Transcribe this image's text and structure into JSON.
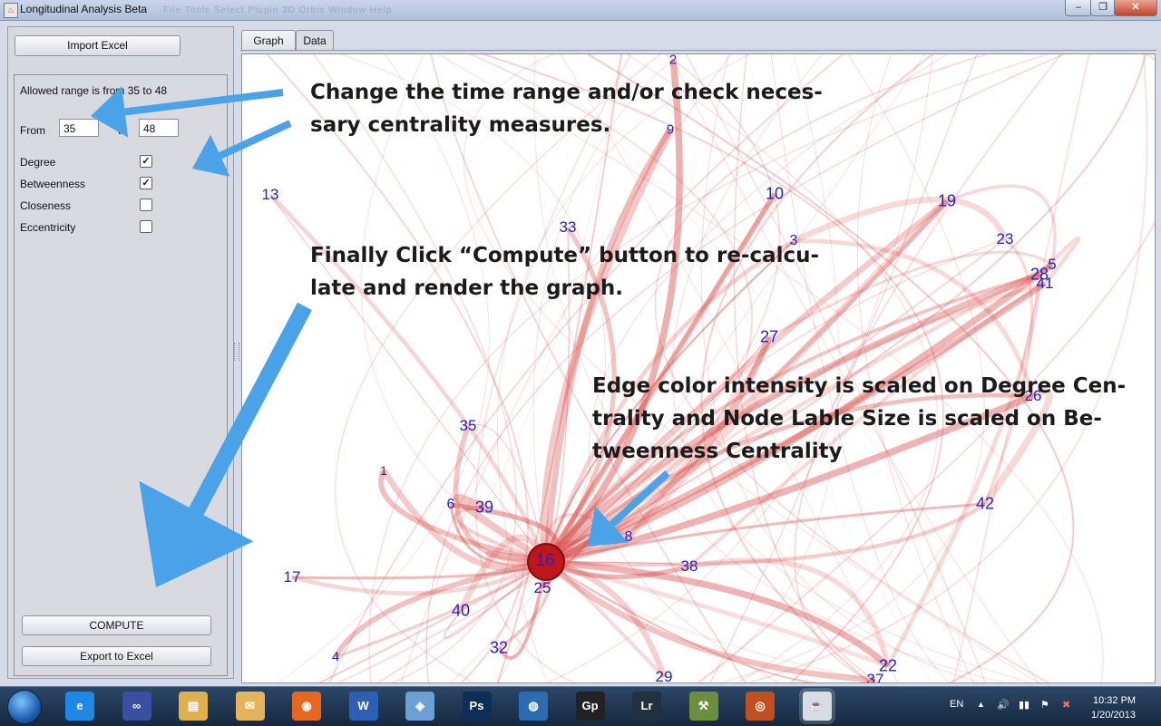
{
  "window": {
    "title": "Longitudinal Analysis Beta",
    "menu_ghost": "File    Tools    Select    Plugin    3D    Orbis    Window    Help",
    "minimize": "–",
    "maximize": "❐",
    "close": "✕"
  },
  "left_panel": {
    "import_button": "Import Excel",
    "allowed_range": "Allowed range is from 35 to 48",
    "from_label": "From",
    "from_value": "35",
    "to_label": "to",
    "to_value": "48",
    "measures": [
      {
        "label": "Degree",
        "checked": true
      },
      {
        "label": "Betweenness",
        "checked": true
      },
      {
        "label": "Closeness",
        "checked": false
      },
      {
        "label": "Eccentricity",
        "checked": false
      }
    ],
    "compute_button": "COMPUTE",
    "export_button": "Export to Excel"
  },
  "tabs": [
    {
      "label": "Graph",
      "active": true
    },
    {
      "label": "Data",
      "active": false
    }
  ],
  "annotations": {
    "a1_l1": "Change the time range and/or check neces-",
    "a1_l2": "sary centrality measures.",
    "a2_l1": "Finally Click “Compute” button to re-calcu-",
    "a2_l2": "late and render the graph.",
    "a3_l1": "Edge color intensity is scaled on Degree Cen-",
    "a3_l2": "trality and Node Lable Size is scaled on Be-",
    "a3_l3": "tweenness Centrality"
  },
  "graph": {
    "edge_color": "#d9534f",
    "arrow_color": "#4aa3e8",
    "hub_color": "#c0161b",
    "node_labels": [
      "2",
      "9",
      "13",
      "10",
      "19",
      "33",
      "23",
      "3",
      "5",
      "28",
      "41",
      "27",
      "26",
      "35",
      "1",
      "6",
      "39",
      "42",
      "8",
      "16",
      "38",
      "17",
      "25",
      "40",
      "32",
      "4",
      "22",
      "29",
      "37"
    ]
  },
  "taskbar": {
    "icons": [
      {
        "name": "ie-icon",
        "color": "#1e88e5",
        "glyph": "e"
      },
      {
        "name": "infinity-icon",
        "color": "#3b4fa0",
        "glyph": "∞"
      },
      {
        "name": "explorer-icon",
        "color": "#e0b04a",
        "glyph": "▤"
      },
      {
        "name": "outlook-icon",
        "color": "#e6b35a",
        "glyph": "✉"
      },
      {
        "name": "firefox-icon",
        "color": "#e8671f",
        "glyph": "◉"
      },
      {
        "name": "word-icon",
        "color": "#2f5fb5",
        "glyph": "W"
      },
      {
        "name": "cube-icon",
        "color": "#6aa0d6",
        "glyph": "◈"
      },
      {
        "name": "photoshop-icon",
        "color": "#0d2f57",
        "glyph": "Ps"
      },
      {
        "name": "google-earth-icon",
        "color": "#2b6cb3",
        "glyph": "◍"
      },
      {
        "name": "gephi-icon",
        "color": "#222222",
        "glyph": "Gp"
      },
      {
        "name": "lightroom-icon",
        "color": "#22313f",
        "glyph": "Lr"
      },
      {
        "name": "tool-icon",
        "color": "#6b8f3c",
        "glyph": "⚒"
      },
      {
        "name": "swirl-icon",
        "color": "#c0501f",
        "glyph": "◎"
      },
      {
        "name": "java-icon",
        "color": "#d8dde5",
        "glyph": "☕"
      }
    ],
    "lang": "EN",
    "time": "10:32 PM",
    "date": "1/20/2013"
  }
}
